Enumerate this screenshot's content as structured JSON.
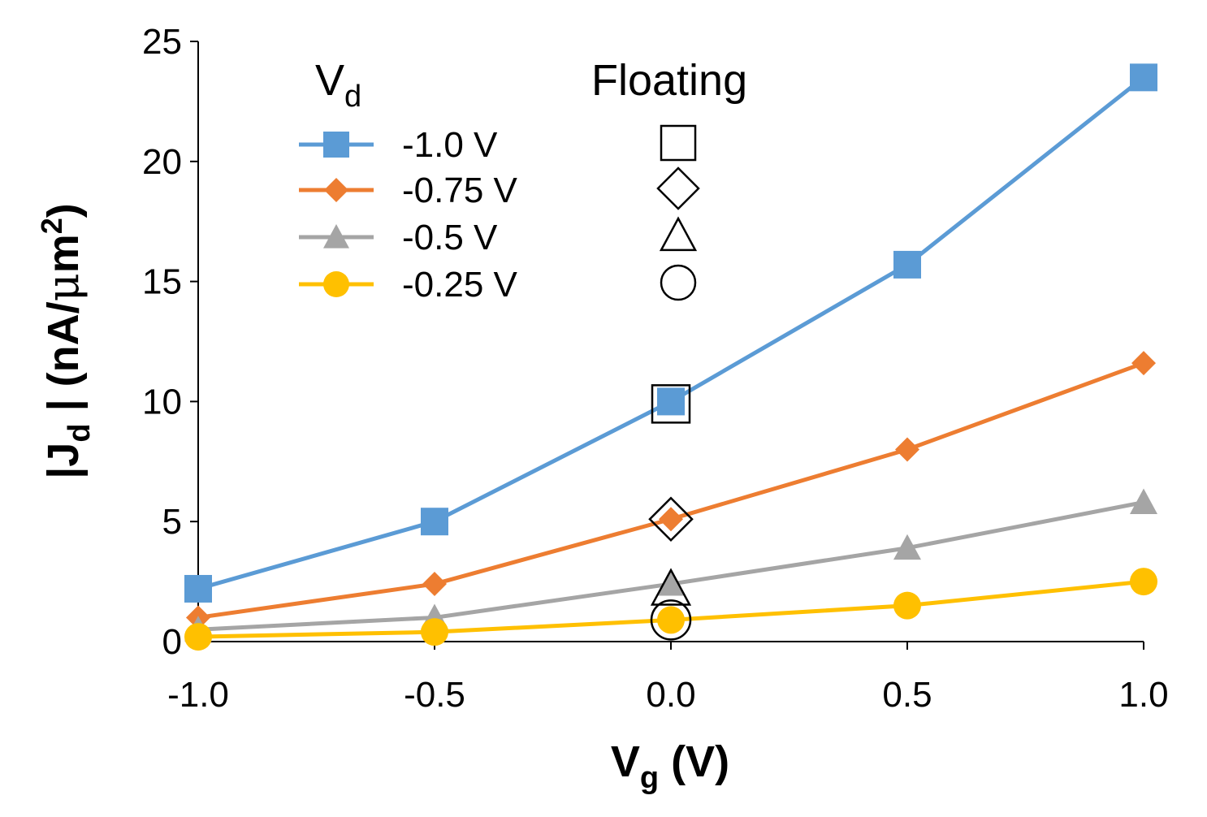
{
  "chart_data": {
    "type": "line",
    "x": [
      -1.0,
      -0.5,
      0.0,
      0.5,
      1.0
    ],
    "x_tick_labels": [
      "-1.0",
      "-0.5",
      "0.0",
      "0.5",
      "1.0"
    ],
    "y_tick_labels": [
      "0",
      "5",
      "10",
      "15",
      "20",
      "25"
    ],
    "y_ticks": [
      0,
      5,
      10,
      15,
      20,
      25
    ],
    "xlim": [
      -1.0,
      1.0
    ],
    "ylim": [
      0,
      25
    ],
    "xlabel": {
      "main": "V",
      "sub": "g",
      "suffix": " (V)"
    },
    "ylabel": {
      "prefix": "|J",
      "sub": "d",
      "mid": " | (nA/",
      "mu": "μ",
      "m": "m",
      "sup": "2",
      "suffix": ")"
    },
    "legend": {
      "header_main": "V",
      "header_sub": "d",
      "floating_header": "Floating",
      "placement": "top-left"
    },
    "series": [
      {
        "name": "-1.0 V",
        "color": "#5b9bd5",
        "marker": "square",
        "values": [
          2.2,
          5.0,
          10.0,
          15.7,
          23.5
        ]
      },
      {
        "name": "-0.75 V",
        "color": "#ed7d31",
        "marker": "diamond",
        "values": [
          1.0,
          2.4,
          5.1,
          8.0,
          11.6
        ]
      },
      {
        "name": "-0.5 V",
        "color": "#a5a5a5",
        "marker": "triangle",
        "values": [
          0.5,
          1.0,
          2.4,
          3.9,
          5.8
        ]
      },
      {
        "name": "-0.25 V",
        "color": "#ffc000",
        "marker": "circle",
        "values": [
          0.2,
          0.4,
          0.9,
          1.5,
          2.5
        ]
      }
    ],
    "floating": [
      {
        "marker": "square",
        "x": 0.0,
        "y": 9.9
      },
      {
        "marker": "diamond",
        "x": 0.0,
        "y": 5.1
      },
      {
        "marker": "triangle",
        "x": 0.0,
        "y": 2.2
      },
      {
        "marker": "circle",
        "x": 0.0,
        "y": 0.9
      }
    ],
    "grid": false
  }
}
